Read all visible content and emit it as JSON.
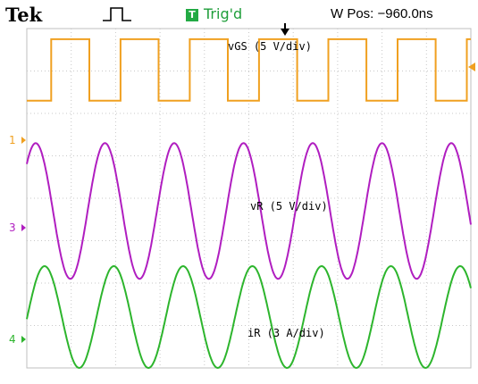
{
  "header": {
    "brand": "Tek",
    "trigger_box_letter": "T",
    "trigger_status": "Trig'd",
    "horizontal_position": "W Pos: −960.0ns",
    "trigger_icon": "rising-pulse-icon"
  },
  "channels": [
    {
      "marker": "1",
      "label": "vGS (5 V/div)",
      "color": "#f0a020"
    },
    {
      "marker": "3",
      "label": "vR (5 V/div)",
      "color": "#b01ec0"
    },
    {
      "marker": "4",
      "label": "iR (3 A/div)",
      "color": "#2db52d"
    }
  ],
  "chart_data": {
    "type": "line",
    "title": "",
    "xlabel": "",
    "ylabel": "",
    "grid": true,
    "divisions": {
      "horizontal": 10,
      "vertical": 8
    },
    "x_range_div": [
      0,
      10
    ],
    "y_range_div": [
      -4,
      4
    ],
    "series": [
      {
        "name": "vGS (5 V/div)",
        "shape": "square",
        "ground_div": 2.3,
        "low_div": 2.3,
        "high_div": 3.75,
        "period_div": 1.56,
        "first_rise_div": 0.55,
        "duty": 0.55
      },
      {
        "name": "vR (5 V/div)",
        "shape": "sine",
        "center_div": -0.3,
        "amplitude_div": 1.6,
        "period_div": 1.56,
        "first_peak_div": 0.2
      },
      {
        "name": "iR (3 A/div)",
        "shape": "sine",
        "center_div": -2.8,
        "amplitude_div": 1.2,
        "period_div": 1.56,
        "first_peak_div": 0.4
      }
    ]
  }
}
